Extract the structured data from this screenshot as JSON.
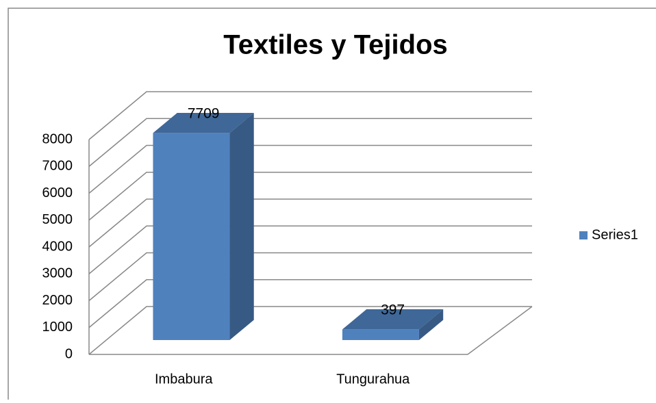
{
  "chart_data": {
    "type": "bar",
    "title": "Textiles y Tejidos",
    "categories": [
      "Imbabura",
      "Tungurahua"
    ],
    "series": [
      {
        "name": "Series1",
        "color": "#4f81bd",
        "values": [
          7709,
          397
        ]
      }
    ],
    "ylim": [
      0,
      8000
    ],
    "yticks": [
      0,
      1000,
      2000,
      3000,
      4000,
      5000,
      6000,
      7000,
      8000
    ],
    "grid": true,
    "legend": "right"
  }
}
